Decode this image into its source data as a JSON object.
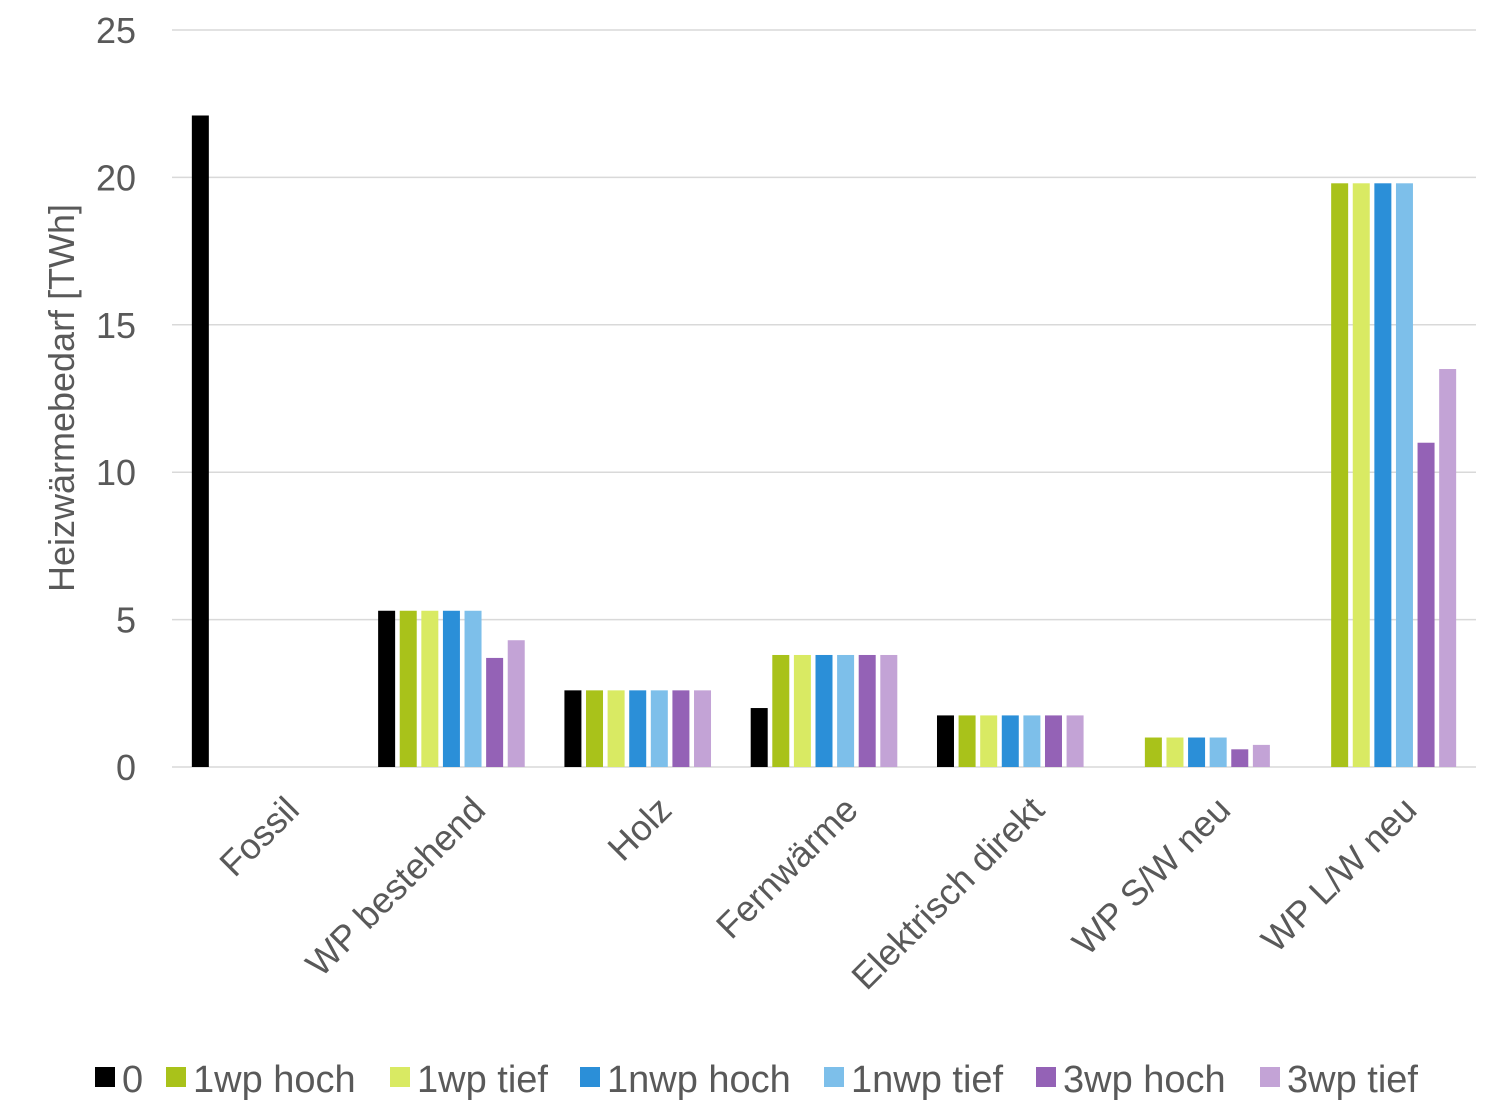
{
  "chart_data": {
    "type": "bar",
    "ylabel": "Heizwärmebedarf [TWh]",
    "xlabel": "",
    "ylim": [
      0,
      25
    ],
    "yticks": [
      0,
      5,
      10,
      15,
      20,
      25
    ],
    "grid": true,
    "legend_position": "bottom",
    "categories": [
      "Fossil",
      "WP bestehend",
      "Holz",
      "Fernwärme",
      "Elektrisch direkt",
      "WP S/W neu",
      "WP L/W neu"
    ],
    "series": [
      {
        "name": "0",
        "color": "#000000",
        "values": [
          22.1,
          5.3,
          2.6,
          2.0,
          1.75,
          0,
          0
        ]
      },
      {
        "name": "1wp hoch",
        "color": "#a9c21a",
        "values": [
          0,
          5.3,
          2.6,
          3.8,
          1.75,
          1.0,
          19.8
        ]
      },
      {
        "name": "1wp tief",
        "color": "#d9ea63",
        "values": [
          0,
          5.3,
          2.6,
          3.8,
          1.75,
          1.0,
          19.8
        ]
      },
      {
        "name": "1nwp hoch",
        "color": "#2b8fd8",
        "values": [
          0,
          5.3,
          2.6,
          3.8,
          1.75,
          1.0,
          19.8
        ]
      },
      {
        "name": "1nwp tief",
        "color": "#7dbfea",
        "values": [
          0,
          5.3,
          2.6,
          3.8,
          1.75,
          1.0,
          19.8
        ]
      },
      {
        "name": "3wp hoch",
        "color": "#9462b6",
        "values": [
          0,
          3.7,
          2.6,
          3.8,
          1.75,
          0.6,
          11.0
        ]
      },
      {
        "name": "3wp tief",
        "color": "#c3a3d6",
        "values": [
          0,
          4.3,
          2.6,
          3.8,
          1.75,
          0.75,
          13.5
        ]
      }
    ]
  }
}
